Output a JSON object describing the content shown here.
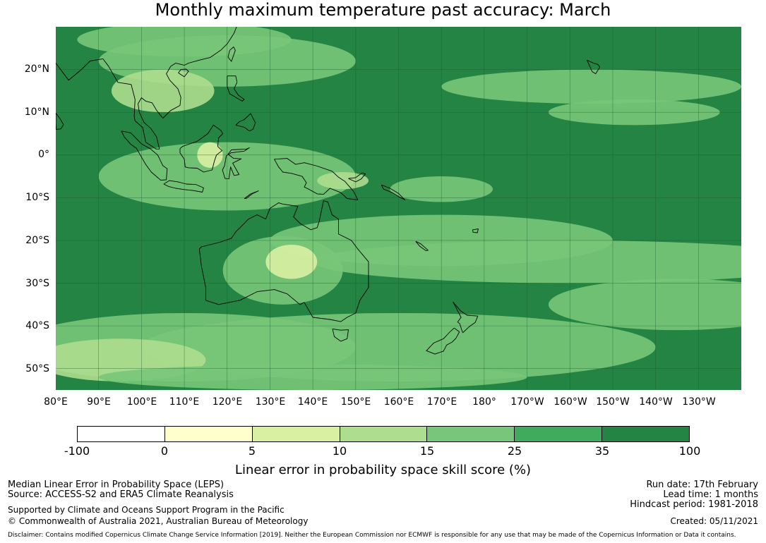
{
  "title": "Monthly maximum temperature past accuracy: March",
  "map": {
    "extent_lon": [
      80,
      240
    ],
    "extent_lat": [
      -55,
      30
    ],
    "ocean_color": "#238443",
    "coastline_color": "#000000",
    "gridline_color": "#1a5c30",
    "lat_labels": [
      "20°N",
      "10°N",
      "0°",
      "10°S",
      "20°S",
      "30°S",
      "40°S",
      "50°S"
    ],
    "lon_labels": [
      "80°E",
      "90°E",
      "100°E",
      "110°E",
      "120°E",
      "130°E",
      "140°E",
      "150°E",
      "160°E",
      "170°E",
      "180°",
      "170°W",
      "160°W",
      "150°W",
      "140°W",
      "130°W"
    ]
  },
  "colorbar": {
    "ticks": [
      "-100",
      "0",
      "5",
      "10",
      "15",
      "25",
      "35",
      "100"
    ],
    "colors": [
      "#ffffff",
      "#ffffcc",
      "#d9f0a3",
      "#addd8e",
      "#78c679",
      "#41ab5d",
      "#238443"
    ],
    "label": "Linear error in probability space skill score (%)"
  },
  "footer": {
    "left_line1": "Median Linear Error in Probability Space (LEPS)",
    "left_line2": "Source: ACCESS-S2 and ERA5 Climate Reanalysis",
    "left_line3": "Supported by Climate and Oceans Support Program in the Pacific",
    "left_line4": "© Commonwealth of Australia 2021, Australian Bureau of Meteorology",
    "right_line1": "Run date: 17th February",
    "right_line2": "Lead time: 1 months",
    "right_line3": "Hindcast period: 1981-2018",
    "right_line4": "Created: 05/11/2021",
    "disclaimer": "Disclaimer: Contains modified Copernicus Climate Change Service Information [2019]. Neither the European Commission nor ECMWF is responsible for any use that may be made of the Copernicus Information or Data it contains."
  }
}
